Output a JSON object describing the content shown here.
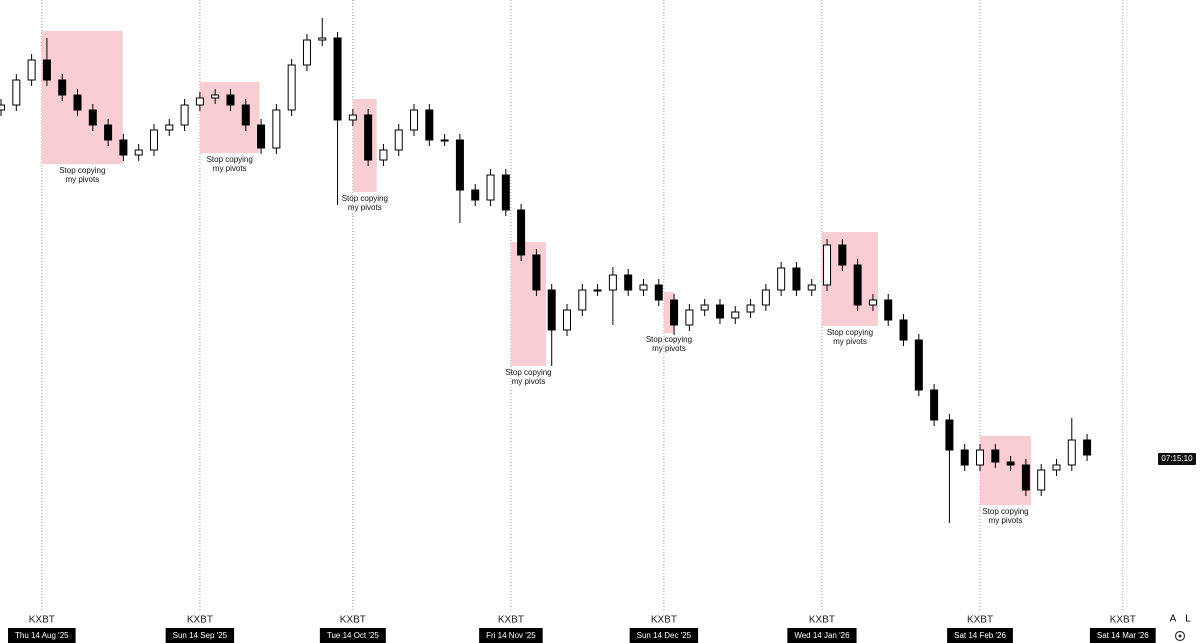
{
  "chart_data": {
    "type": "candlestick",
    "symbol": "KXBT",
    "xlim": [
      -8.2,
      219.3
    ],
    "ylim": [
      0,
      610
    ],
    "xticks": [
      {
        "value": 0,
        "label": "Thu 14 Aug '25"
      },
      {
        "value": 31,
        "label": "Sun 14 Sep '25"
      },
      {
        "value": 61,
        "label": "Tue 14 Oct '25"
      },
      {
        "value": 92,
        "label": "Fri 14 Nov '25"
      },
      {
        "value": 122,
        "label": "Sun 14 Dec '25"
      },
      {
        "value": 153,
        "label": "Wed 14 Jan '26"
      },
      {
        "value": 184,
        "label": "Sat 14 Feb '26"
      },
      {
        "value": 212,
        "label": "Sat 14 Mar '26"
      }
    ],
    "x": [
      -8,
      -5,
      -2,
      1,
      4,
      7,
      10,
      13,
      16,
      19,
      22,
      25,
      28,
      31,
      34,
      37,
      40,
      43,
      46,
      49,
      52,
      55,
      58,
      61,
      64,
      67,
      70,
      73,
      76,
      79,
      82,
      85,
      88,
      91,
      94,
      97,
      100,
      103,
      106,
      109,
      112,
      115,
      118,
      121,
      124,
      127,
      130,
      133,
      136,
      139,
      142,
      145,
      148,
      151,
      154,
      157,
      160,
      163,
      166,
      169,
      172,
      175,
      178,
      181,
      184,
      187,
      190,
      193,
      196,
      199,
      202,
      205
    ],
    "ohlc": [
      [
        500,
        511,
        494,
        505
      ],
      [
        505,
        536,
        499,
        530
      ],
      [
        530,
        556,
        524,
        550
      ],
      [
        550,
        572,
        524,
        530
      ],
      [
        530,
        536,
        509,
        515
      ],
      [
        515,
        521,
        494,
        500
      ],
      [
        500,
        506,
        479,
        485
      ],
      [
        485,
        491,
        464,
        470
      ],
      [
        470,
        476,
        449,
        455
      ],
      [
        455,
        466,
        449,
        460
      ],
      [
        460,
        486,
        454,
        480
      ],
      [
        480,
        491,
        474,
        485
      ],
      [
        485,
        511,
        479,
        505
      ],
      [
        505,
        518,
        499,
        512
      ],
      [
        512,
        521,
        506,
        515
      ],
      [
        515,
        521,
        499,
        505
      ],
      [
        505,
        511,
        479,
        485
      ],
      [
        485,
        491,
        456,
        462
      ],
      [
        462,
        506,
        456,
        500
      ],
      [
        500,
        551,
        494,
        545
      ],
      [
        545,
        576,
        539,
        570
      ],
      [
        570,
        592,
        564,
        572
      ],
      [
        572,
        578,
        405,
        490
      ],
      [
        490,
        501,
        484,
        495
      ],
      [
        495,
        501,
        444,
        450
      ],
      [
        450,
        466,
        444,
        460
      ],
      [
        460,
        486,
        454,
        480
      ],
      [
        480,
        506,
        474,
        500
      ],
      [
        500,
        506,
        464,
        470
      ],
      [
        470,
        476,
        464,
        470
      ],
      [
        470,
        476,
        387,
        420
      ],
      [
        420,
        426,
        404,
        410
      ],
      [
        410,
        441,
        404,
        435
      ],
      [
        435,
        441,
        394,
        400
      ],
      [
        400,
        406,
        349,
        355
      ],
      [
        355,
        361,
        314,
        320
      ],
      [
        320,
        326,
        244,
        280
      ],
      [
        280,
        306,
        274,
        300
      ],
      [
        300,
        326,
        294,
        320
      ],
      [
        320,
        326,
        314,
        320
      ],
      [
        320,
        343,
        285,
        335
      ],
      [
        335,
        341,
        314,
        320
      ],
      [
        320,
        331,
        314,
        325
      ],
      [
        325,
        331,
        304,
        310
      ],
      [
        310,
        316,
        275,
        285
      ],
      [
        285,
        306,
        279,
        300
      ],
      [
        300,
        311,
        294,
        305
      ],
      [
        305,
        311,
        286,
        292
      ],
      [
        292,
        304,
        286,
        298
      ],
      [
        298,
        311,
        292,
        305
      ],
      [
        305,
        326,
        299,
        320
      ],
      [
        320,
        348,
        314,
        342
      ],
      [
        342,
        348,
        314,
        320
      ],
      [
        320,
        331,
        314,
        325
      ],
      [
        325,
        371,
        319,
        365
      ],
      [
        365,
        371,
        339,
        345
      ],
      [
        345,
        351,
        299,
        305
      ],
      [
        305,
        316,
        299,
        310
      ],
      [
        310,
        316,
        284,
        290
      ],
      [
        290,
        296,
        264,
        270
      ],
      [
        270,
        276,
        214,
        220
      ],
      [
        220,
        226,
        184,
        190
      ],
      [
        190,
        196,
        87,
        160
      ],
      [
        160,
        166,
        139,
        145
      ],
      [
        145,
        166,
        139,
        160
      ],
      [
        160,
        166,
        142,
        148
      ],
      [
        148,
        154,
        139,
        145
      ],
      [
        145,
        151,
        114,
        120
      ],
      [
        120,
        146,
        114,
        140
      ],
      [
        140,
        151,
        134,
        145
      ],
      [
        145,
        192,
        139,
        170
      ],
      [
        170,
        176,
        149,
        155
      ]
    ],
    "up_color": "#ffffff",
    "down_color": "#000000",
    "annotations": [
      {
        "x0": 0,
        "x1": 15.9,
        "y0": 446,
        "y1": 579,
        "lines": [
          "Stop copying",
          "my pivots"
        ]
      },
      {
        "x0": 31,
        "x1": 42.7,
        "y0": 457,
        "y1": 528,
        "lines": [
          "Stop copying",
          "my pivots"
        ]
      },
      {
        "x0": 61,
        "x1": 65.7,
        "y0": 418,
        "y1": 511,
        "lines": [
          "Stop copying",
          "my pivots"
        ]
      },
      {
        "x0": 92,
        "x1": 98.9,
        "y0": 244,
        "y1": 368,
        "lines": [
          "Stop copying",
          "my pivots"
        ]
      },
      {
        "x0": 122,
        "x1": 124,
        "y0": 277,
        "y1": 318,
        "lines": [
          "Stop copying",
          "my pivots"
        ]
      },
      {
        "x0": 153,
        "x1": 164,
        "y0": 284,
        "y1": 378,
        "lines": [
          "Stop copying",
          "my pivots"
        ]
      },
      {
        "x0": 184,
        "x1": 194,
        "y0": 105,
        "y1": 174,
        "lines": [
          "Stop copying",
          "my pivots"
        ]
      }
    ],
    "annotation_color": "#f8c6cb",
    "countdown": {
      "value": 151,
      "label": "07:15:10"
    },
    "buttons": [
      "A",
      "L"
    ]
  }
}
